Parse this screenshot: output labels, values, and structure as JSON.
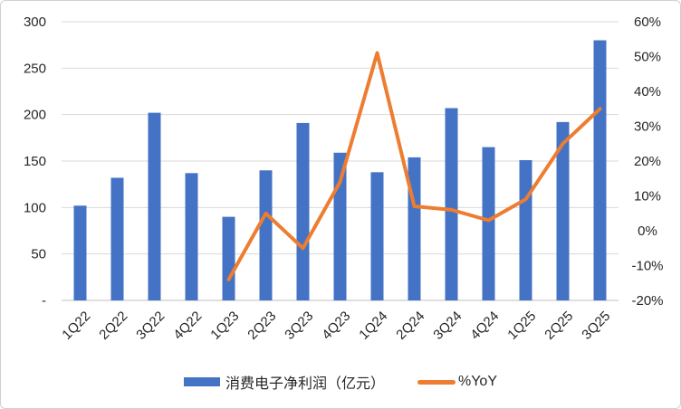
{
  "colors": {
    "bar": "#4472C4",
    "line": "#ED7D31",
    "gridline": "#D9D9D9",
    "axis_line": "#BFBFBF",
    "text": "#262626"
  },
  "legend": {
    "items": [
      {
        "label": "消费电子净利润（亿元）",
        "type": "bar",
        "color": "#4472C4"
      },
      {
        "label": "%YoY",
        "type": "line",
        "color": "#ED7D31"
      }
    ]
  },
  "chart_data": {
    "type": "combo",
    "title": "",
    "categories": [
      "1Q22",
      "2Q22",
      "3Q22",
      "4Q22",
      "1Q23",
      "2Q23",
      "3Q23",
      "4Q23",
      "1Q24",
      "2Q24",
      "3Q24",
      "4Q24",
      "1Q25",
      "2Q25",
      "3Q25"
    ],
    "series": [
      {
        "name": "消费电子净利润（亿元）",
        "type": "bar",
        "axis": "left",
        "color": "#4472C4",
        "values": [
          102,
          132,
          202,
          137,
          90,
          140,
          191,
          159,
          138,
          154,
          207,
          165,
          151,
          192,
          280
        ]
      },
      {
        "name": "%YoY",
        "type": "line",
        "axis": "right",
        "color": "#ED7D31",
        "values": [
          null,
          null,
          null,
          null,
          -14,
          5,
          -5,
          14,
          51,
          7,
          6,
          3,
          9,
          25,
          35
        ]
      }
    ],
    "axes": {
      "left": {
        "min": 0,
        "max": 300,
        "tick_values": [
          0,
          50,
          100,
          150,
          200,
          250,
          300
        ],
        "tick_labels": [
          "-",
          "50",
          "100",
          "150",
          "200",
          "250",
          "300"
        ]
      },
      "right": {
        "min": -20,
        "max": 60,
        "unit": "%",
        "tick_values": [
          -20,
          -10,
          0,
          10,
          20,
          30,
          40,
          50,
          60
        ],
        "tick_labels": [
          "-20%",
          "-10%",
          "0%",
          "10%",
          "20%",
          "30%",
          "40%",
          "50%",
          "60%"
        ]
      }
    },
    "grid": true,
    "legend_position": "bottom"
  }
}
